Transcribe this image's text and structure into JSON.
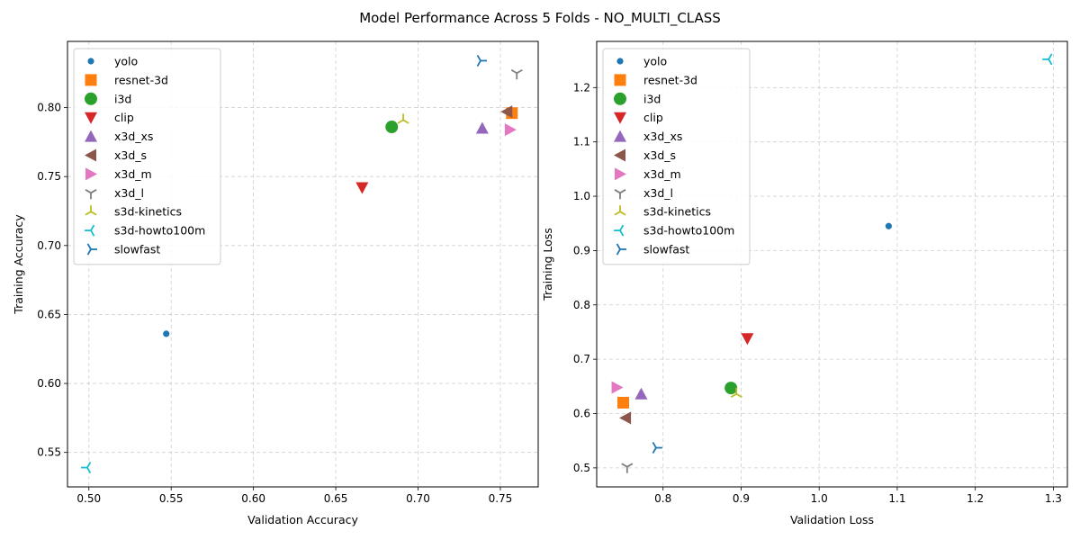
{
  "figure": {
    "title": "Model Performance Across 5 Folds - NO_MULTI_CLASS"
  },
  "colors": {
    "yolo": "#1f77b4",
    "resnet-3d": "#ff7f0e",
    "i3d": "#2ca02c",
    "clip": "#d62728",
    "x3d_xs": "#9467bd",
    "x3d_s": "#8c564b",
    "x3d_m": "#e377c2",
    "x3d_l": "#7f7f7f",
    "s3d-kinetics": "#bcbd22",
    "s3d-howto100m": "#17becf",
    "slowfast": "#1f77b4"
  },
  "chart_data": [
    {
      "type": "scatter",
      "xlabel": "Validation Accuracy",
      "ylabel": "Training Accuracy",
      "xlim": [
        0.487,
        0.773
      ],
      "ylim": [
        0.525,
        0.848
      ],
      "xticks": [
        "0.50",
        "0.55",
        "0.60",
        "0.65",
        "0.70",
        "0.75"
      ],
      "yticks": [
        "0.55",
        "0.60",
        "0.65",
        "0.70",
        "0.75",
        "0.80"
      ],
      "grid": true,
      "legend_position": "upper-left",
      "series": [
        {
          "name": "yolo",
          "marker": "circle-small",
          "x": 0.547,
          "y": 0.636
        },
        {
          "name": "resnet-3d",
          "marker": "square",
          "x": 0.757,
          "y": 0.796
        },
        {
          "name": "i3d",
          "marker": "circle",
          "x": 0.684,
          "y": 0.786
        },
        {
          "name": "clip",
          "marker": "triangle-down",
          "x": 0.666,
          "y": 0.742
        },
        {
          "name": "x3d_xs",
          "marker": "triangle-up",
          "x": 0.739,
          "y": 0.785
        },
        {
          "name": "x3d_s",
          "marker": "triangle-left",
          "x": 0.754,
          "y": 0.797
        },
        {
          "name": "x3d_m",
          "marker": "triangle-right",
          "x": 0.756,
          "y": 0.784
        },
        {
          "name": "x3d_l",
          "marker": "tri-down",
          "x": 0.76,
          "y": 0.825
        },
        {
          "name": "s3d-kinetics",
          "marker": "tri-up",
          "x": 0.691,
          "y": 0.791
        },
        {
          "name": "s3d-howto100m",
          "marker": "tri-left",
          "x": 0.499,
          "y": 0.539
        },
        {
          "name": "slowfast",
          "marker": "tri-right",
          "x": 0.738,
          "y": 0.834
        }
      ]
    },
    {
      "type": "scatter",
      "xlabel": "Validation Loss",
      "ylabel": "Training Loss",
      "xlim": [
        0.715,
        1.318
      ],
      "ylim": [
        0.465,
        1.285
      ],
      "xticks": [
        "0.8",
        "0.9",
        "1.0",
        "1.1",
        "1.2",
        "1.3"
      ],
      "yticks": [
        "0.5",
        "0.6",
        "0.7",
        "0.8",
        "0.9",
        "1.0",
        "1.1",
        "1.2"
      ],
      "grid": true,
      "legend_position": "upper-left",
      "series": [
        {
          "name": "yolo",
          "marker": "circle-small",
          "x": 1.089,
          "y": 0.945
        },
        {
          "name": "resnet-3d",
          "marker": "square",
          "x": 0.749,
          "y": 0.62
        },
        {
          "name": "i3d",
          "marker": "circle",
          "x": 0.887,
          "y": 0.647
        },
        {
          "name": "clip",
          "marker": "triangle-down",
          "x": 0.908,
          "y": 0.738
        },
        {
          "name": "x3d_xs",
          "marker": "triangle-up",
          "x": 0.772,
          "y": 0.636
        },
        {
          "name": "x3d_s",
          "marker": "triangle-left",
          "x": 0.752,
          "y": 0.592
        },
        {
          "name": "x3d_m",
          "marker": "triangle-right",
          "x": 0.741,
          "y": 0.648
        },
        {
          "name": "x3d_l",
          "marker": "tri-down",
          "x": 0.754,
          "y": 0.502
        },
        {
          "name": "s3d-kinetics",
          "marker": "tri-up",
          "x": 0.894,
          "y": 0.636
        },
        {
          "name": "s3d-howto100m",
          "marker": "tri-left",
          "x": 1.294,
          "y": 1.252
        },
        {
          "name": "slowfast",
          "marker": "tri-right",
          "x": 0.791,
          "y": 0.537
        }
      ]
    }
  ]
}
